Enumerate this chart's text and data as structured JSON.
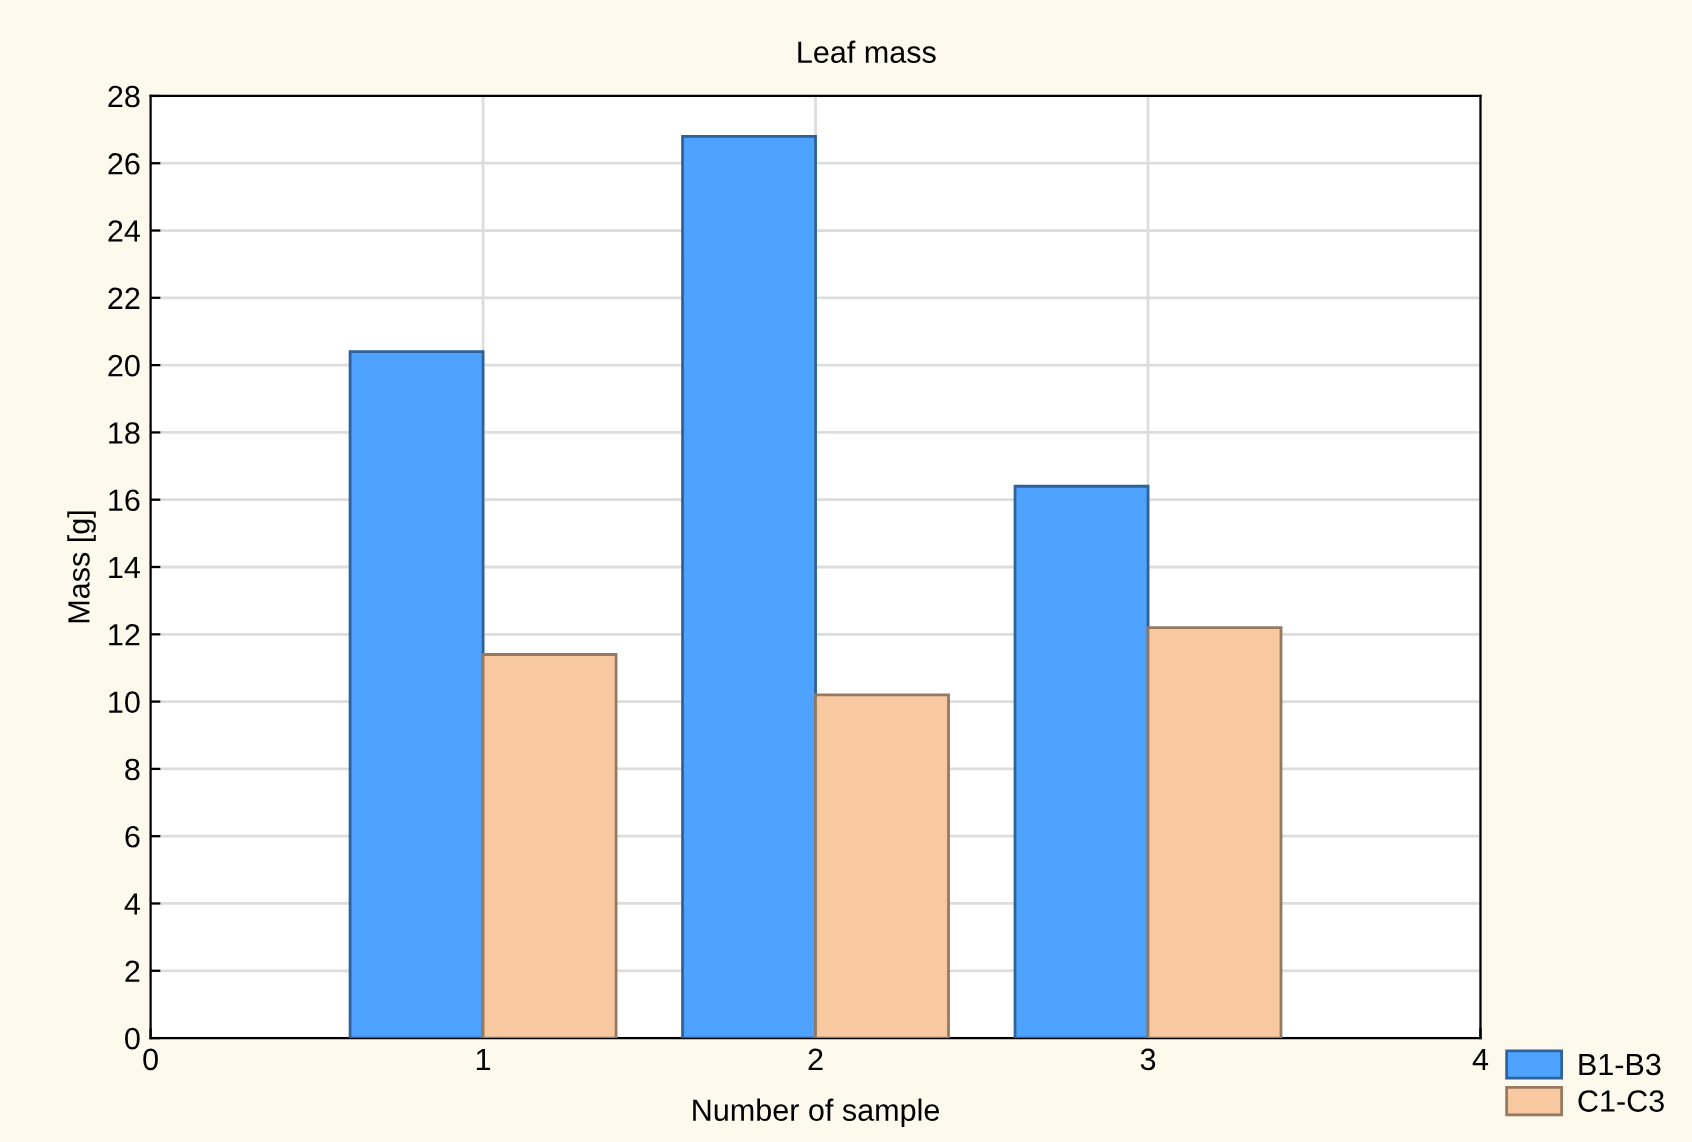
{
  "chart_data": {
    "type": "bar",
    "title": "Leaf mass",
    "xlabel": "Number of sample",
    "ylabel": "Mass [g]",
    "x": [
      1,
      2,
      3
    ],
    "series": [
      {
        "name": "B1-B3",
        "color": "#4da3ff",
        "values": [
          20.4,
          26.8,
          16.4
        ]
      },
      {
        "name": "C1-C3",
        "color": "#f8c9a0",
        "values": [
          11.4,
          10.2,
          12.2
        ]
      }
    ],
    "xlim": [
      0,
      4
    ],
    "xticks": [
      0,
      1,
      2,
      3,
      4
    ],
    "ylim": [
      0,
      28
    ],
    "yticks": [
      0,
      2,
      4,
      6,
      8,
      10,
      12,
      14,
      16,
      18,
      20,
      22,
      24,
      26,
      28
    ],
    "grid": true,
    "legend": "bottom right"
  }
}
